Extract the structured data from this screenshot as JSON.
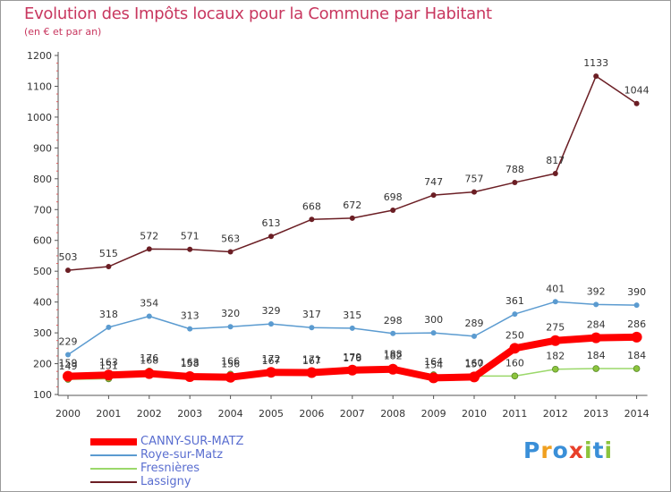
{
  "title": "Evolution des Impôts locaux pour la Commune par Habitant",
  "subtitle": "(en € et par an)",
  "logo": {
    "text": "Proxiti",
    "letters": [
      {
        "ch": "P",
        "color": "#3a8fd8"
      },
      {
        "ch": "r",
        "color": "#f0a020"
      },
      {
        "ch": "o",
        "color": "#3a8fd8"
      },
      {
        "ch": "x",
        "color": "#e8402a"
      },
      {
        "ch": "i",
        "color": "#8cc43c"
      },
      {
        "ch": "t",
        "color": "#3a8fd8"
      },
      {
        "ch": "i",
        "color": "#8cc43c"
      }
    ]
  },
  "chart_data": {
    "type": "line",
    "title": "Evolution des Impôts locaux pour la Commune par Habitant",
    "ylabel": "(en € et par an)",
    "xlabel": "",
    "ylim": [
      100,
      1200
    ],
    "yticks": [
      100,
      200,
      300,
      400,
      500,
      600,
      700,
      800,
      900,
      1000,
      1100,
      1200
    ],
    "x": [
      "2000",
      "2001",
      "2002",
      "2003",
      "2004",
      "2005",
      "2006",
      "2007",
      "2008",
      "2009",
      "2010",
      "2011",
      "2012",
      "2013",
      "2014"
    ],
    "grid": false,
    "legend": "bottom-left",
    "series": [
      {
        "name": "Lassigny",
        "color": "#6b1e24",
        "marker": "#6b1e24",
        "values": [
          503,
          515,
          572,
          571,
          563,
          613,
          668,
          672,
          698,
          747,
          757,
          788,
          817,
          1133,
          1044
        ],
        "labels": [
          "503",
          "515",
          "572",
          "571",
          "563",
          "613",
          "668",
          "672",
          "698",
          "747",
          "757",
          "788",
          "817",
          "1133",
          "1044"
        ]
      },
      {
        "name": "Roye-sur-Matz",
        "color": "#5b9bd0",
        "marker": "#5b9bd0",
        "values": [
          229,
          318,
          354,
          313,
          320,
          329,
          317,
          315,
          298,
          300,
          289,
          361,
          401,
          392,
          390
        ],
        "labels": [
          "229",
          "318",
          "354",
          "313",
          "320",
          "329",
          "317",
          "315",
          "298",
          "300",
          "289",
          "361",
          "401",
          "392",
          "390"
        ]
      },
      {
        "name": "Fresnières",
        "color": "#9bd86a",
        "marker": "#8cc43c",
        "values": [
          149,
          151,
          176,
          163,
          166,
          167,
          167,
          176,
          188,
          164,
          160,
          160,
          182,
          184,
          184
        ],
        "labels": [
          "149",
          "151",
          "176",
          "163",
          "166",
          "167",
          "167",
          "176",
          "188",
          "164",
          "160",
          "160",
          "182",
          "184",
          "184"
        ]
      },
      {
        "name": "CANNY-SUR-MATZ",
        "color": "#ff0000",
        "marker": "#ff0000",
        "values": [
          159,
          163,
          168,
          158,
          156,
          172,
          171,
          179,
          182,
          154,
          157,
          250,
          275,
          284,
          286
        ],
        "labels": [
          "159",
          "163",
          "168",
          "158",
          "156",
          "172",
          "171",
          "179",
          "182",
          "154",
          "157",
          "250",
          "275",
          "284",
          "286"
        ]
      }
    ],
    "legend_order": [
      "CANNY-SUR-MATZ",
      "Roye-sur-Matz",
      "Fresnières",
      "Lassigny"
    ]
  }
}
